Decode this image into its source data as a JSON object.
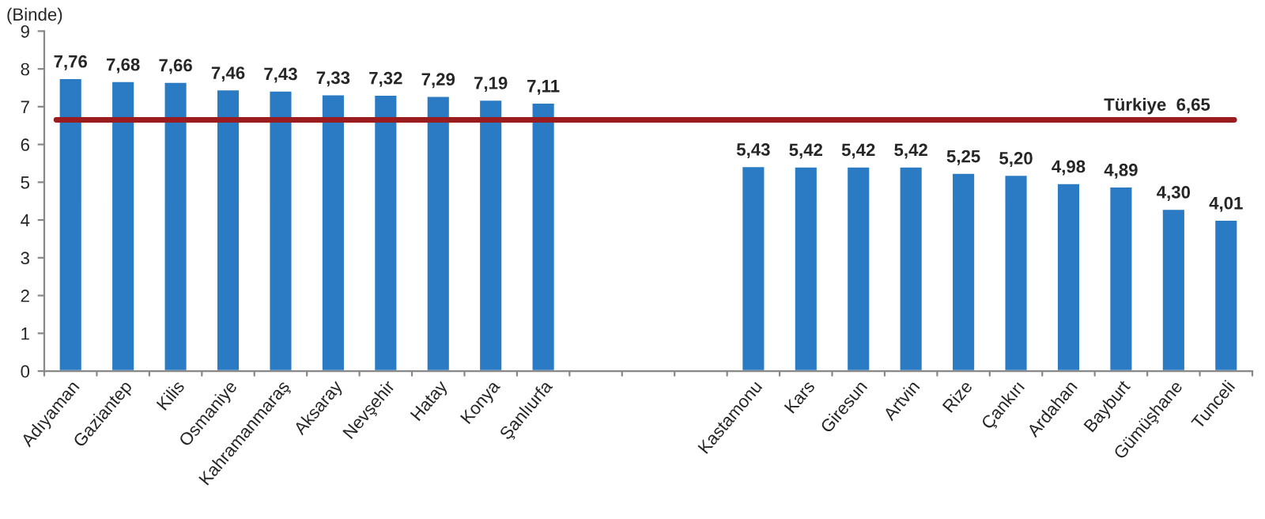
{
  "chart_data": {
    "type": "bar",
    "ylabel": "(Binde)",
    "categories": [
      "Adıyaman",
      "Gaziantep",
      "Kilis",
      "Osmaniye",
      "Kahramanmaraş",
      "Aksaray",
      "Nevşehir",
      "Hatay",
      "Konya",
      "Şanlıurfa",
      null,
      null,
      null,
      "Kastamonu",
      "Kars",
      "Giresun",
      "Artvin",
      "Rize",
      "Çankırı",
      "Ardahan",
      "Bayburt",
      "Gümüşhane",
      "Tunceli"
    ],
    "values": [
      7.76,
      7.68,
      7.66,
      7.46,
      7.43,
      7.33,
      7.32,
      7.29,
      7.19,
      7.11,
      null,
      null,
      null,
      5.43,
      5.42,
      5.42,
      5.42,
      5.25,
      5.2,
      4.98,
      4.89,
      4.3,
      4.01
    ],
    "value_labels": [
      "7,76",
      "7,68",
      "7,66",
      "7,46",
      "7,43",
      "7,33",
      "7,32",
      "7,29",
      "7,19",
      "7,11",
      null,
      null,
      null,
      "5,43",
      "5,42",
      "5,42",
      "5,42",
      "5,25",
      "5,20",
      "4,98",
      "4,89",
      "4,30",
      "4,01"
    ],
    "color": "#2b7bc4",
    "ylim": [
      0,
      9
    ],
    "yticks": [
      0,
      1,
      2,
      3,
      4,
      5,
      6,
      7,
      8,
      9
    ],
    "grid": false,
    "legend": false,
    "ref_lines": [
      {
        "axis": "y",
        "value": 6.65,
        "label": "Türkiye  6,65",
        "color": "#9b1c1f",
        "line_style": "solid"
      }
    ]
  }
}
